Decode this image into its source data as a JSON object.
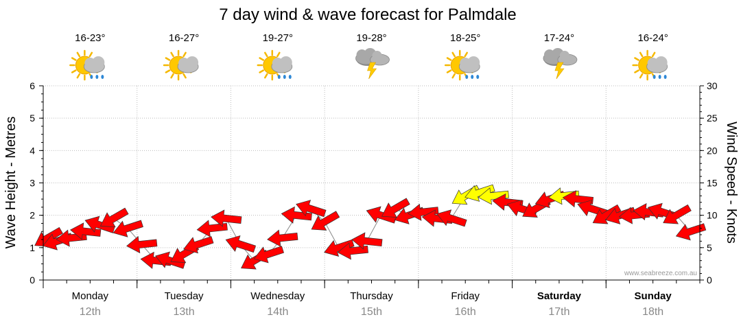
{
  "chart_data": {
    "type": "line",
    "title": "7 day wind & wave forecast for Palmdale",
    "ylabel_left": "Wave Height - Metres",
    "ylabel_right": "Wind Speed - Knots",
    "ylim_left": [
      0,
      6
    ],
    "ylim_right": [
      0,
      30
    ],
    "yticks_left": [
      "0",
      "1",
      "2",
      "3",
      "4",
      "5",
      "6"
    ],
    "yticks_right": [
      "0",
      "5",
      "10",
      "15",
      "20",
      "25",
      "30"
    ],
    "grid": true,
    "credit": "www.seabreeze.com.au",
    "days": [
      {
        "day": "Monday",
        "date": "12th",
        "temp": "16-23°",
        "weather_icon": "sun-cloud-rain-icon",
        "bold": false
      },
      {
        "day": "Tuesday",
        "date": "13th",
        "temp": "16-27°",
        "weather_icon": "sun-cloud-icon",
        "bold": false
      },
      {
        "day": "Wednesday",
        "date": "14th",
        "temp": "19-27°",
        "weather_icon": "sun-cloud-rain-icon",
        "bold": false
      },
      {
        "day": "Thursday",
        "date": "15th",
        "temp": "19-28°",
        "weather_icon": "storm-icon",
        "bold": false
      },
      {
        "day": "Friday",
        "date": "16th",
        "temp": "18-25°",
        "weather_icon": "sun-cloud-rain-icon",
        "bold": false
      },
      {
        "day": "Saturday",
        "date": "17th",
        "temp": "17-24°",
        "weather_icon": "storm-icon",
        "bold": true
      },
      {
        "day": "Sunday",
        "date": "18th",
        "temp": "16-24°",
        "weather_icon": "sun-cloud-rain-icon",
        "bold": true
      }
    ],
    "wind_series": {
      "name": "Wind",
      "x_days": [
        0.05,
        0.15,
        0.3,
        0.45,
        0.6,
        0.75,
        0.9,
        1.05,
        1.2,
        1.35,
        1.5,
        1.65,
        1.8,
        1.95,
        2.1,
        2.25,
        2.4,
        2.55,
        2.7,
        2.85,
        3.0,
        3.15,
        3.3,
        3.45,
        3.6,
        3.75,
        3.9,
        4.05,
        4.2,
        4.35,
        4.5,
        4.65,
        4.8,
        4.95,
        5.1,
        5.25,
        5.4,
        5.55,
        5.7,
        5.85,
        6.0,
        6.15,
        6.3,
        6.45,
        6.6,
        6.75,
        6.9
      ],
      "knots": [
        6.5,
        6,
        6.5,
        7.5,
        8.5,
        9.5,
        8,
        5.5,
        3,
        3,
        4,
        5.5,
        8,
        9.5,
        5.5,
        3,
        4,
        6.5,
        10,
        11,
        9,
        5,
        4.5,
        6,
        10,
        11,
        10,
        10.5,
        9.5,
        9.5,
        13,
        13.5,
        13,
        12,
        11,
        11,
        12.5,
        13,
        12.5,
        11,
        10,
        10,
        10,
        10.5,
        10.5,
        10,
        7.5
      ],
      "speed_colors": {
        "light": "#ff0000",
        "strong": "#ffff00"
      },
      "strong_threshold_knots": 13
    }
  }
}
